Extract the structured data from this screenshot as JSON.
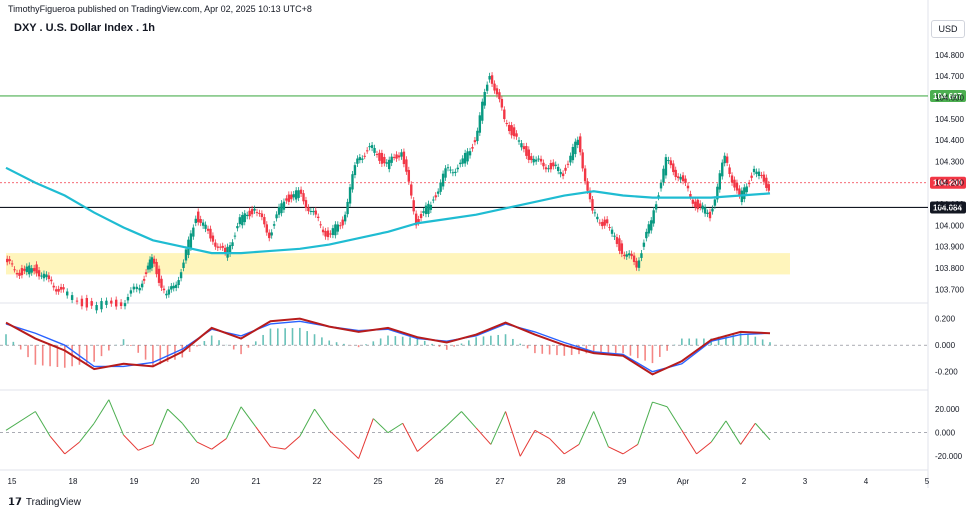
{
  "header": {
    "published": "TimothyFigueroa published on TradingView.com, Apr 02, 2025 10:13 UTC+8",
    "title": "DXY . U.S. Dollar Index . 1h",
    "currency": "USD"
  },
  "footer": {
    "brand": "TradingView"
  },
  "colors": {
    "up": "#089981",
    "down": "#f23645",
    "ma": "#1fbcd2",
    "support_zone": "#fff3b0",
    "hline_green": "#4caf50",
    "hline_black": "#131722",
    "price_red": "#f23645",
    "macd_fast": "#2962ff",
    "macd_red": "#b71c1c",
    "macd_green": "#4caf50"
  },
  "chart_data": {
    "type": "candlestick",
    "x_ticks": [
      "15",
      "18",
      "19",
      "20",
      "21",
      "22",
      "25",
      "26",
      "27",
      "28",
      "29",
      "Apr",
      "2",
      "3",
      "4",
      "5"
    ],
    "price_axis": {
      "ticks": [
        "104.800",
        "104.700",
        "104.600",
        "104.500",
        "104.400",
        "104.300",
        "104.200",
        "104.100",
        "104.000",
        "103.900",
        "103.800",
        "103.700"
      ],
      "ylim": [
        103.65,
        104.86
      ]
    },
    "price_labels": [
      {
        "value": 104.607,
        "label": "104.607",
        "color": "#4caf50"
      },
      {
        "value": 104.2,
        "label": "104.200",
        "color": "#f23645"
      },
      {
        "value": 104.084,
        "label": "104.084",
        "color": "#131722"
      }
    ],
    "support_zone": {
      "low": 103.77,
      "high": 103.87
    },
    "close_path": [
      {
        "x": 0,
        "y": 103.83
      },
      {
        "x": 0.5,
        "y": 103.78
      },
      {
        "x": 1,
        "y": 103.8
      },
      {
        "x": 1.5,
        "y": 103.74
      },
      {
        "x": 2,
        "y": 103.68
      },
      {
        "x": 3,
        "y": 103.62
      },
      {
        "x": 4,
        "y": 103.64
      },
      {
        "x": 4.6,
        "y": 103.72
      },
      {
        "x": 5,
        "y": 103.84
      },
      {
        "x": 5.5,
        "y": 103.66
      },
      {
        "x": 6,
        "y": 103.78
      },
      {
        "x": 6.5,
        "y": 104.05
      },
      {
        "x": 7,
        "y": 103.95
      },
      {
        "x": 7.5,
        "y": 103.86
      },
      {
        "x": 8,
        "y": 104.02
      },
      {
        "x": 8.5,
        "y": 104.08
      },
      {
        "x": 9,
        "y": 103.96
      },
      {
        "x": 9.5,
        "y": 104.12
      },
      {
        "x": 10,
        "y": 104.15
      },
      {
        "x": 10.5,
        "y": 104.05
      },
      {
        "x": 11,
        "y": 103.95
      },
      {
        "x": 11.5,
        "y": 104.02
      },
      {
        "x": 12,
        "y": 104.32
      },
      {
        "x": 12.5,
        "y": 104.36
      },
      {
        "x": 13,
        "y": 104.28
      },
      {
        "x": 13.5,
        "y": 104.35
      },
      {
        "x": 14,
        "y": 104.02
      },
      {
        "x": 14.5,
        "y": 104.1
      },
      {
        "x": 15,
        "y": 104.25
      },
      {
        "x": 15.5,
        "y": 104.28
      },
      {
        "x": 16,
        "y": 104.4
      },
      {
        "x": 16.5,
        "y": 104.72
      },
      {
        "x": 17,
        "y": 104.5
      },
      {
        "x": 17.5,
        "y": 104.38
      },
      {
        "x": 18,
        "y": 104.3
      },
      {
        "x": 18.5,
        "y": 104.28
      },
      {
        "x": 19,
        "y": 104.25
      },
      {
        "x": 19.5,
        "y": 104.4
      },
      {
        "x": 20,
        "y": 104.05
      },
      {
        "x": 20.5,
        "y": 104.0
      },
      {
        "x": 21,
        "y": 103.88
      },
      {
        "x": 21.5,
        "y": 103.82
      },
      {
        "x": 22,
        "y": 104.02
      },
      {
        "x": 22.5,
        "y": 104.3
      },
      {
        "x": 23,
        "y": 104.22
      },
      {
        "x": 23.5,
        "y": 104.1
      },
      {
        "x": 24,
        "y": 104.05
      },
      {
        "x": 24.5,
        "y": 104.32
      },
      {
        "x": 25,
        "y": 104.12
      },
      {
        "x": 25.5,
        "y": 104.26
      },
      {
        "x": 26,
        "y": 104.18
      }
    ],
    "ma_series": [
      {
        "x": 0,
        "y": 104.27
      },
      {
        "x": 1,
        "y": 104.2
      },
      {
        "x": 2,
        "y": 104.14
      },
      {
        "x": 3,
        "y": 104.06
      },
      {
        "x": 4,
        "y": 103.99
      },
      {
        "x": 5,
        "y": 103.93
      },
      {
        "x": 6,
        "y": 103.9
      },
      {
        "x": 7,
        "y": 103.87
      },
      {
        "x": 8,
        "y": 103.87
      },
      {
        "x": 9,
        "y": 103.88
      },
      {
        "x": 10,
        "y": 103.89
      },
      {
        "x": 11,
        "y": 103.91
      },
      {
        "x": 12,
        "y": 103.94
      },
      {
        "x": 13,
        "y": 103.97
      },
      {
        "x": 14,
        "y": 104.01
      },
      {
        "x": 15,
        "y": 104.03
      },
      {
        "x": 16,
        "y": 104.05
      },
      {
        "x": 17,
        "y": 104.08
      },
      {
        "x": 18,
        "y": 104.11
      },
      {
        "x": 19,
        "y": 104.14
      },
      {
        "x": 20,
        "y": 104.16
      },
      {
        "x": 21,
        "y": 104.14
      },
      {
        "x": 22,
        "y": 104.13
      },
      {
        "x": 23,
        "y": 104.13
      },
      {
        "x": 24,
        "y": 104.13
      },
      {
        "x": 25,
        "y": 104.14
      },
      {
        "x": 26,
        "y": 104.15
      }
    ],
    "macd": {
      "axis_ticks": [
        "0.200",
        "0.000",
        "-0.200"
      ],
      "ylim": [
        -0.3,
        0.28
      ],
      "fast": [
        {
          "x": 0,
          "y": 0.17
        },
        {
          "x": 1,
          "y": 0.05
        },
        {
          "x": 2,
          "y": -0.04
        },
        {
          "x": 3,
          "y": -0.18
        },
        {
          "x": 4,
          "y": -0.14
        },
        {
          "x": 5,
          "y": -0.16
        },
        {
          "x": 6,
          "y": -0.05
        },
        {
          "x": 7,
          "y": 0.13
        },
        {
          "x": 8,
          "y": 0.05
        },
        {
          "x": 9,
          "y": 0.18
        },
        {
          "x": 10,
          "y": 0.2
        },
        {
          "x": 11,
          "y": 0.14
        },
        {
          "x": 12,
          "y": 0.1
        },
        {
          "x": 13,
          "y": 0.13
        },
        {
          "x": 14,
          "y": 0.06
        },
        {
          "x": 15,
          "y": 0.02
        },
        {
          "x": 16,
          "y": 0.08
        },
        {
          "x": 17,
          "y": 0.17
        },
        {
          "x": 18,
          "y": 0.08
        },
        {
          "x": 19,
          "y": 0.0
        },
        {
          "x": 20,
          "y": -0.06
        },
        {
          "x": 21,
          "y": -0.08
        },
        {
          "x": 22,
          "y": -0.22
        },
        {
          "x": 23,
          "y": -0.12
        },
        {
          "x": 24,
          "y": 0.04
        },
        {
          "x": 25,
          "y": 0.1
        },
        {
          "x": 26,
          "y": 0.09
        }
      ],
      "slow": [
        {
          "x": 0,
          "y": 0.16
        },
        {
          "x": 1,
          "y": 0.09
        },
        {
          "x": 2,
          "y": 0.0
        },
        {
          "x": 3,
          "y": -0.16
        },
        {
          "x": 4,
          "y": -0.16
        },
        {
          "x": 5,
          "y": -0.13
        },
        {
          "x": 6,
          "y": -0.03
        },
        {
          "x": 7,
          "y": 0.12
        },
        {
          "x": 8,
          "y": 0.07
        },
        {
          "x": 9,
          "y": 0.16
        },
        {
          "x": 10,
          "y": 0.18
        },
        {
          "x": 11,
          "y": 0.14
        },
        {
          "x": 12,
          "y": 0.11
        },
        {
          "x": 13,
          "y": 0.12
        },
        {
          "x": 14,
          "y": 0.05
        },
        {
          "x": 15,
          "y": 0.03
        },
        {
          "x": 16,
          "y": 0.07
        },
        {
          "x": 17,
          "y": 0.16
        },
        {
          "x": 18,
          "y": 0.1
        },
        {
          "x": 19,
          "y": 0.02
        },
        {
          "x": 20,
          "y": -0.05
        },
        {
          "x": 21,
          "y": -0.07
        },
        {
          "x": 22,
          "y": -0.2
        },
        {
          "x": 23,
          "y": -0.14
        },
        {
          "x": 24,
          "y": 0.03
        },
        {
          "x": 25,
          "y": 0.08
        },
        {
          "x": 26,
          "y": 0.09
        }
      ]
    },
    "oscillator": {
      "axis_ticks": [
        "20.000",
        "0.000",
        "-20.000"
      ],
      "ylim": [
        -30,
        32
      ],
      "values": [
        {
          "x": 0,
          "y": 2
        },
        {
          "x": 1,
          "y": 18
        },
        {
          "x": 1.5,
          "y": -3
        },
        {
          "x": 2,
          "y": -18
        },
        {
          "x": 2.5,
          "y": -8
        },
        {
          "x": 3,
          "y": 8
        },
        {
          "x": 3.5,
          "y": 28
        },
        {
          "x": 4,
          "y": -2
        },
        {
          "x": 4.5,
          "y": -15
        },
        {
          "x": 5,
          "y": -10
        },
        {
          "x": 5.5,
          "y": 20
        },
        {
          "x": 6,
          "y": 8
        },
        {
          "x": 6.5,
          "y": -8
        },
        {
          "x": 7,
          "y": -14
        },
        {
          "x": 7.5,
          "y": -5
        },
        {
          "x": 8,
          "y": 22
        },
        {
          "x": 8.5,
          "y": 5
        },
        {
          "x": 9,
          "y": -12
        },
        {
          "x": 9.5,
          "y": -14
        },
        {
          "x": 10,
          "y": -3
        },
        {
          "x": 10.5,
          "y": 20
        },
        {
          "x": 11,
          "y": 2
        },
        {
          "x": 11.5,
          "y": -10
        },
        {
          "x": 12,
          "y": -22
        },
        {
          "x": 12.5,
          "y": 12
        },
        {
          "x": 13,
          "y": 0
        },
        {
          "x": 13.5,
          "y": 8
        },
        {
          "x": 14,
          "y": -16
        },
        {
          "x": 14.5,
          "y": -5
        },
        {
          "x": 15,
          "y": 6
        },
        {
          "x": 15.5,
          "y": 18
        },
        {
          "x": 16,
          "y": 4
        },
        {
          "x": 16.5,
          "y": -10
        },
        {
          "x": 17,
          "y": 18
        },
        {
          "x": 17.5,
          "y": -20
        },
        {
          "x": 18,
          "y": 2
        },
        {
          "x": 18.5,
          "y": -5
        },
        {
          "x": 19,
          "y": -18
        },
        {
          "x": 19.5,
          "y": -10
        },
        {
          "x": 20,
          "y": 18
        },
        {
          "x": 20.5,
          "y": -12
        },
        {
          "x": 21,
          "y": -18
        },
        {
          "x": 21.5,
          "y": -10
        },
        {
          "x": 22,
          "y": 26
        },
        {
          "x": 22.5,
          "y": 22
        },
        {
          "x": 23,
          "y": 2
        },
        {
          "x": 23.5,
          "y": -18
        },
        {
          "x": 24,
          "y": -8
        },
        {
          "x": 24.5,
          "y": 10
        },
        {
          "x": 25,
          "y": -10
        },
        {
          "x": 25.5,
          "y": 8
        },
        {
          "x": 26,
          "y": -6
        }
      ]
    }
  }
}
